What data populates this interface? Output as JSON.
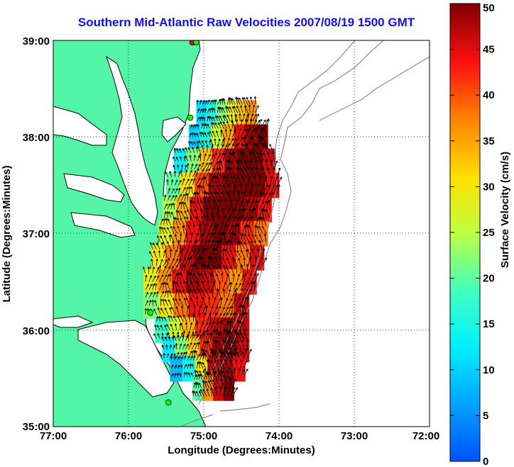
{
  "chart_data": {
    "type": "heatmap",
    "title": "Southern Mid-Atlantic Raw Velocities 2007/08/19 1500 GMT",
    "xlabel": "Longitude (Degrees:Minutes)",
    "ylabel": "Latitude (Degrees:Minutes)",
    "colorbar_label": "Surface Velocity (cm/s)",
    "x_ticks": [
      "77:00",
      "76:00",
      "75:00",
      "74:00",
      "73:00",
      "72:00"
    ],
    "y_ticks": [
      "39:00",
      "38:00",
      "37:00",
      "36:00",
      "35:00"
    ],
    "colorbar_ticks": [
      "0",
      "5",
      "10",
      "15",
      "20",
      "25",
      "30",
      "35",
      "40",
      "45",
      "50"
    ],
    "xlim": [
      -77,
      -72
    ],
    "ylim": [
      35,
      39
    ],
    "clim": [
      0,
      50
    ],
    "grid": "dotted",
    "colormap": "jet",
    "land_color": "#55f5a8",
    "coast_color": "#000000",
    "bathymetry_color": "#8c8c8c",
    "field": [
      {
        "lat": 38.25,
        "lon_min": -75.1,
        "lon_max": -74.3,
        "v": [
          11,
          15,
          22,
          28,
          33,
          36
        ]
      },
      {
        "lat": 38.0,
        "lon_min": -75.2,
        "lon_max": -74.15,
        "v": [
          10,
          16,
          26,
          35,
          44,
          48,
          50
        ]
      },
      {
        "lat": 37.75,
        "lon_min": -75.4,
        "lon_max": -74.05,
        "v": [
          13,
          22,
          33,
          42,
          48,
          50,
          50,
          46
        ]
      },
      {
        "lat": 37.5,
        "lon_min": -75.5,
        "lon_max": -74.0,
        "v": [
          20,
          30,
          40,
          48,
          50,
          50,
          50,
          45
        ]
      },
      {
        "lat": 37.25,
        "lon_min": -75.55,
        "lon_max": -74.1,
        "v": [
          24,
          34,
          44,
          50,
          50,
          50,
          48,
          44
        ]
      },
      {
        "lat": 37.0,
        "lon_min": -75.6,
        "lon_max": -74.15,
        "v": [
          28,
          36,
          44,
          48,
          50,
          48,
          42,
          38
        ]
      },
      {
        "lat": 36.75,
        "lon_min": -75.7,
        "lon_max": -74.2,
        "v": [
          30,
          38,
          46,
          50,
          50,
          44,
          38,
          45
        ]
      },
      {
        "lat": 36.5,
        "lon_min": -75.8,
        "lon_max": -74.3,
        "v": [
          28,
          36,
          44,
          48,
          46,
          40,
          36,
          44
        ]
      },
      {
        "lat": 36.25,
        "lon_min": -75.8,
        "lon_max": -74.4,
        "v": [
          22,
          30,
          38,
          44,
          42,
          38,
          46
        ]
      },
      {
        "lat": 36.0,
        "lon_min": -75.65,
        "lon_max": -74.4,
        "v": [
          18,
          26,
          34,
          42,
          46,
          48,
          46
        ]
      },
      {
        "lat": 35.8,
        "lon_min": -75.55,
        "lon_max": -74.4,
        "v": [
          12,
          22,
          32,
          42,
          48,
          50,
          46
        ]
      },
      {
        "lat": 35.6,
        "lon_min": -75.45,
        "lon_max": -74.45,
        "v": [
          8,
          14,
          30,
          46,
          48,
          44
        ]
      },
      {
        "lat": 35.4,
        "lon_min": -75.15,
        "lon_max": -74.6,
        "v": [
          20,
          36,
          46,
          50
        ]
      }
    ],
    "vectors": {
      "color": "#000000",
      "count_note": ""
    },
    "markers": [
      {
        "lon": -75.15,
        "lat": 38.98,
        "color": "#ff0000"
      },
      {
        "lon": -75.1,
        "lat": 38.98,
        "color": "#00ff00"
      },
      {
        "lon": -75.18,
        "lat": 38.2,
        "color": "#00ff00"
      },
      {
        "lon": -75.71,
        "lat": 36.18,
        "color": "#00ff00"
      },
      {
        "lon": -75.47,
        "lat": 35.25,
        "color": "#00ff00"
      }
    ]
  }
}
